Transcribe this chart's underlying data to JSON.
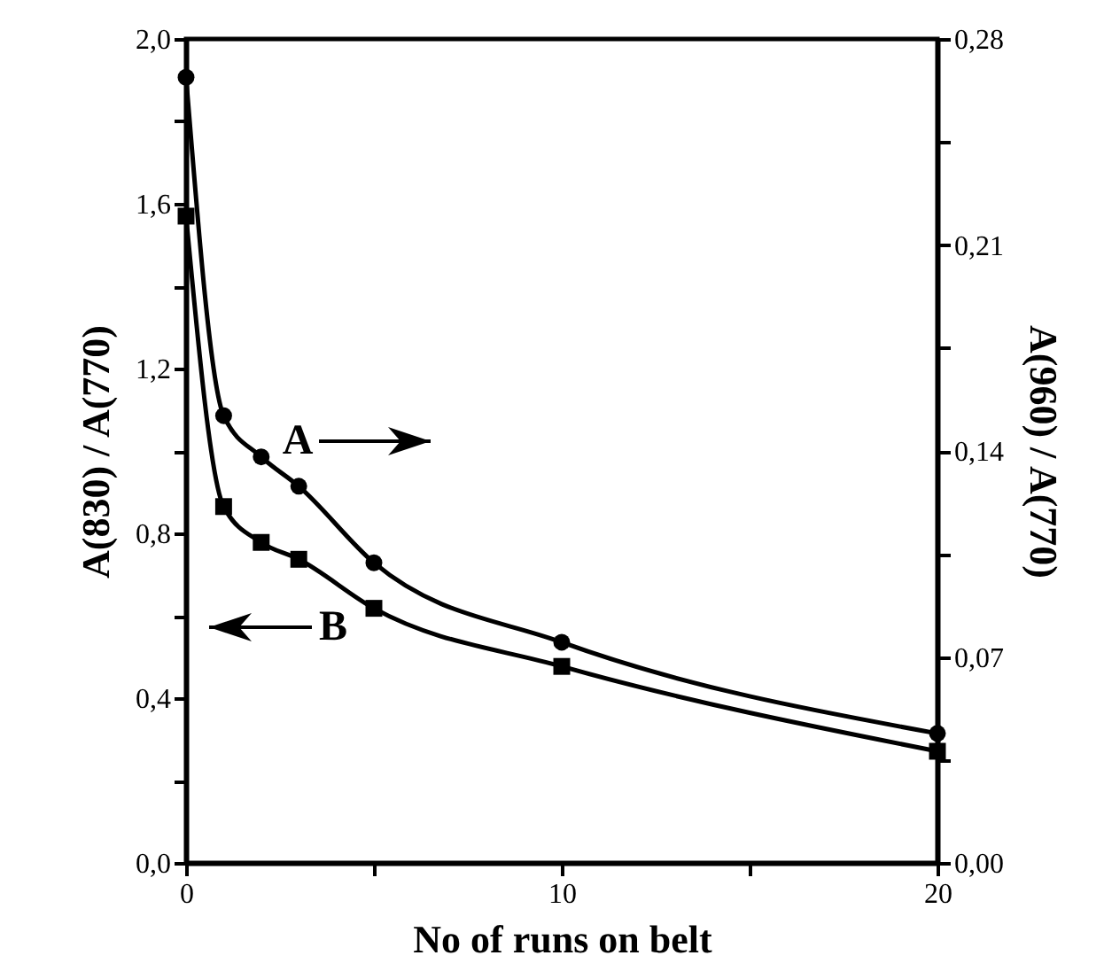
{
  "chart_data": {
    "type": "line",
    "xlabel": "No of runs on belt",
    "ylabel": "A(830) / A(770)",
    "y2label": "A(960) / A(770)",
    "x": [
      0,
      1,
      2,
      3,
      5,
      10,
      20
    ],
    "series": [
      {
        "name": null,
        "color": "#000000",
        "axis": "y2",
        "marker": "circle",
        "values": [
          0.267,
          0.152,
          0.138,
          0.128,
          0.102,
          0.075,
          0.044
        ]
      },
      {
        "name": null,
        "color": "#000000",
        "marker": "square",
        "values": [
          1.57,
          0.865,
          0.778,
          0.737,
          0.618,
          0.477,
          0.271
        ]
      }
    ],
    "xlim": [
      0,
      20
    ],
    "xticks": [
      0,
      {
        "value": 5,
        "label": null
      },
      10,
      {
        "value": 15,
        "label": null
      },
      20
    ],
    "ylim": [
      0,
      2.0
    ],
    "yticks": [
      {
        "value": 0,
        "label": "0,0"
      },
      {
        "value": 0.2,
        "label": null
      },
      {
        "value": 0.4,
        "label": "0,4"
      },
      {
        "value": 0.6,
        "label": null
      },
      {
        "value": 0.8,
        "label": "0,8"
      },
      {
        "value": 1.0,
        "label": null
      },
      {
        "value": 1.2,
        "label": "1,2"
      },
      {
        "value": 1.4,
        "label": null
      },
      {
        "value": 1.6,
        "label": "1,6"
      },
      {
        "value": 1.8,
        "label": null
      },
      {
        "value": 2.0,
        "label": "2,0"
      }
    ],
    "y2lim": [
      0,
      0.28
    ],
    "y2ticks": [
      {
        "value": 0,
        "label": "0,00"
      },
      {
        "value": 0.035,
        "label": null
      },
      {
        "value": 0.07,
        "label": "0,07"
      },
      {
        "value": 0.105,
        "label": null
      },
      {
        "value": 0.14,
        "label": "0,14"
      },
      {
        "value": 0.175,
        "label": null
      },
      {
        "value": 0.21,
        "label": "0,21"
      },
      {
        "value": 0.245,
        "label": null
      },
      {
        "value": 0.28,
        "label": "0,28"
      }
    ],
    "annotations": [
      "A",
      "B"
    ],
    "grid": false,
    "line_style": "solid"
  }
}
